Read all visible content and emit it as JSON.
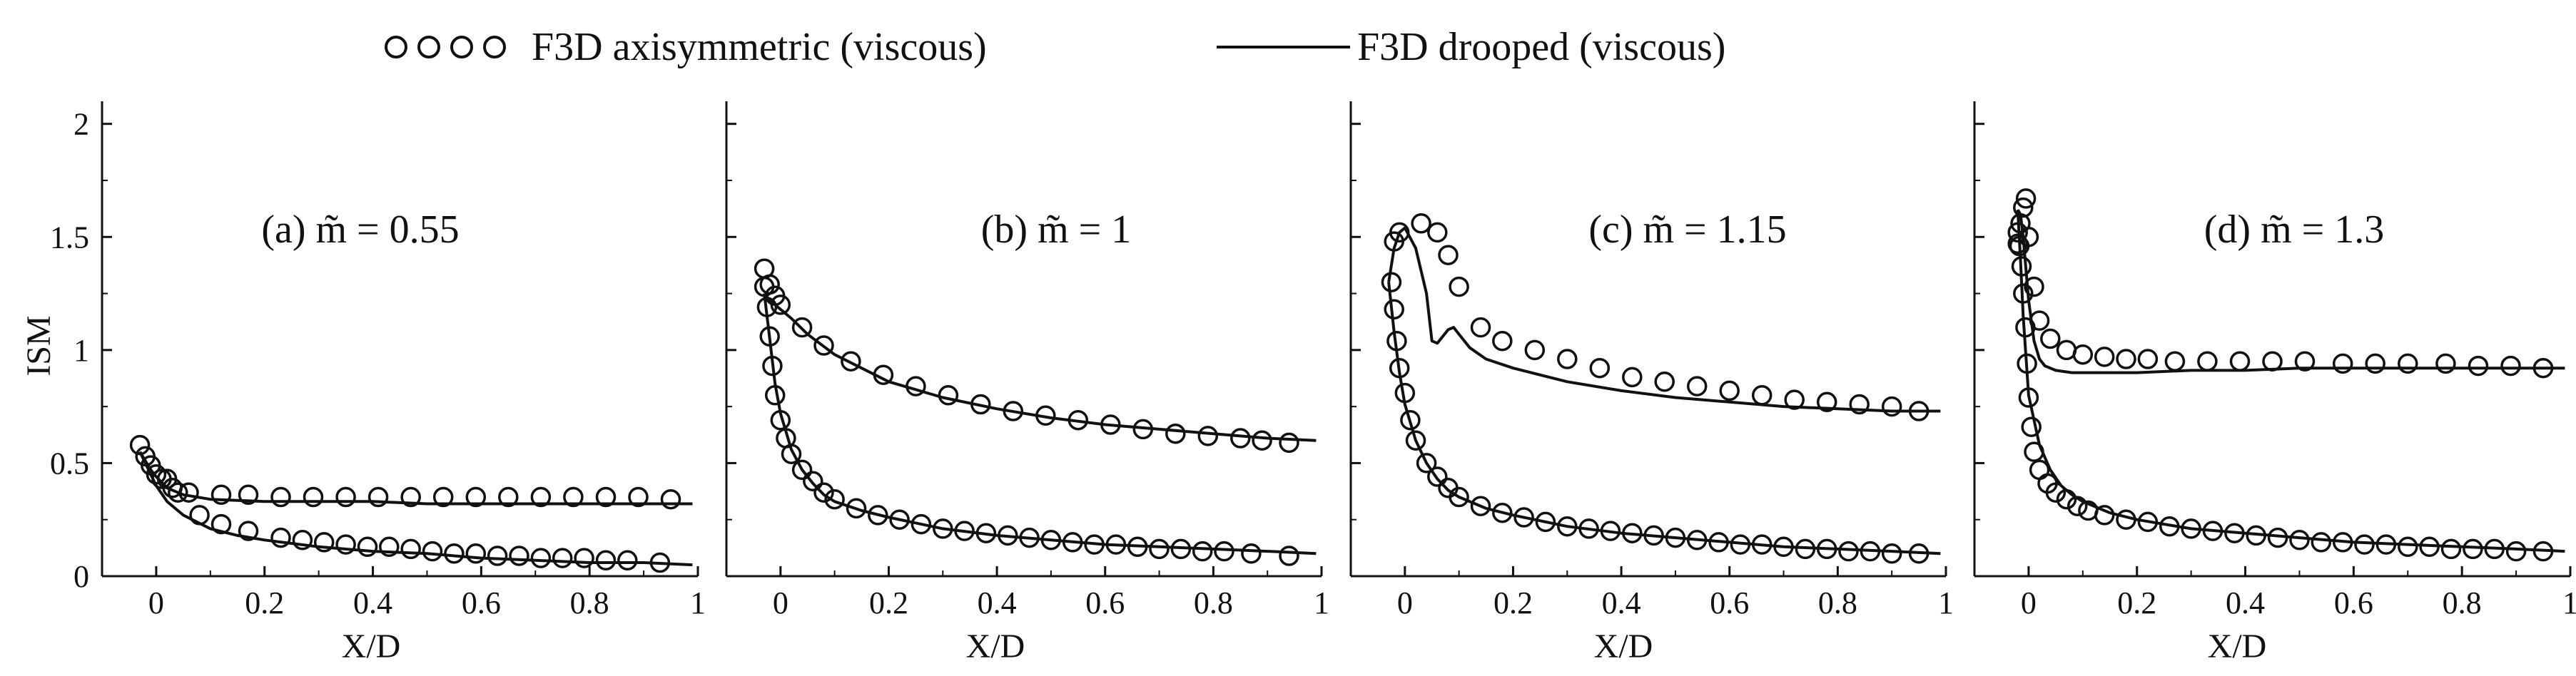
{
  "legend": {
    "axisymmetric_label": "F3D axisymmetric (viscous)",
    "drooped_label": "F3D drooped (viscous)",
    "placement": "top-center"
  },
  "colors": {
    "ink": "#111111",
    "background": "#ffffff"
  },
  "chart_data": [
    {
      "type": "line",
      "panel": "a",
      "title": "(a) m̃ = 0.55",
      "xlabel": "X/D",
      "ylabel": "ISM",
      "xlim": [
        -0.1,
        1.0
      ],
      "ylim": [
        0,
        2.1
      ],
      "xticks": [
        0,
        0.2,
        0.4,
        0.6,
        0.8,
        1
      ],
      "xticklabels": [
        "0",
        "0.2",
        "0.4",
        "0.6",
        "0.8",
        "1"
      ],
      "yticks": [
        0,
        0.5,
        1,
        1.5,
        2
      ],
      "yticklabels": [
        "0",
        "0.5",
        "1",
        "1.5",
        "2"
      ],
      "grid": false,
      "series": [
        {
          "name": "F3D axisymmetric (viscous) upper",
          "style": "marker-circle",
          "x": [
            -0.03,
            -0.02,
            -0.01,
            0.0,
            0.01,
            0.03,
            0.06,
            0.12,
            0.17,
            0.23,
            0.29,
            0.35,
            0.41,
            0.47,
            0.53,
            0.59,
            0.65,
            0.71,
            0.77,
            0.83,
            0.89,
            0.95
          ],
          "y": [
            0.58,
            0.53,
            0.49,
            0.45,
            0.43,
            0.39,
            0.37,
            0.36,
            0.36,
            0.35,
            0.35,
            0.35,
            0.35,
            0.35,
            0.35,
            0.35,
            0.35,
            0.35,
            0.35,
            0.35,
            0.35,
            0.34
          ]
        },
        {
          "name": "F3D axisymmetric (viscous) lower",
          "style": "marker-circle",
          "x": [
            0.02,
            0.04,
            0.08,
            0.12,
            0.17,
            0.23,
            0.27,
            0.31,
            0.35,
            0.39,
            0.43,
            0.47,
            0.51,
            0.55,
            0.59,
            0.63,
            0.67,
            0.71,
            0.75,
            0.79,
            0.83,
            0.87,
            0.93
          ],
          "y": [
            0.43,
            0.37,
            0.27,
            0.23,
            0.2,
            0.17,
            0.16,
            0.15,
            0.14,
            0.13,
            0.13,
            0.12,
            0.11,
            0.1,
            0.1,
            0.09,
            0.09,
            0.08,
            0.08,
            0.08,
            0.07,
            0.07,
            0.06
          ]
        },
        {
          "name": "F3D drooped (viscous) upper",
          "style": "line",
          "x": [
            -0.03,
            -0.01,
            0.0,
            0.02,
            0.05,
            0.1,
            0.2,
            0.3,
            0.4,
            0.5,
            0.6,
            0.7,
            0.8,
            0.9,
            0.99
          ],
          "y": [
            0.55,
            0.47,
            0.44,
            0.39,
            0.36,
            0.34,
            0.33,
            0.33,
            0.33,
            0.32,
            0.32,
            0.32,
            0.32,
            0.32,
            0.32
          ]
        },
        {
          "name": "F3D drooped (viscous) lower",
          "style": "line",
          "x": [
            -0.03,
            -0.01,
            0.0,
            0.02,
            0.05,
            0.1,
            0.15,
            0.2,
            0.3,
            0.4,
            0.5,
            0.6,
            0.7,
            0.8,
            0.9,
            0.99
          ],
          "y": [
            0.55,
            0.45,
            0.4,
            0.33,
            0.27,
            0.21,
            0.18,
            0.16,
            0.13,
            0.11,
            0.1,
            0.08,
            0.07,
            0.06,
            0.06,
            0.05
          ]
        }
      ]
    },
    {
      "type": "line",
      "panel": "b",
      "title": "(b) m̃ = 1",
      "xlabel": "X/D",
      "ylabel": "",
      "xlim": [
        -0.1,
        1.0
      ],
      "ylim": [
        0,
        2.1
      ],
      "xticks": [
        0,
        0.2,
        0.4,
        0.6,
        0.8,
        1
      ],
      "xticklabels": [
        "0",
        "0.2",
        "0.4",
        "0.6",
        "0.8",
        "1"
      ],
      "yticks": [
        0,
        0.5,
        1,
        1.5,
        2
      ],
      "yticklabels": [],
      "grid": false,
      "series": [
        {
          "name": "F3D axisymmetric (viscous) upper",
          "style": "marker-circle",
          "x": [
            -0.03,
            -0.02,
            -0.01,
            0.0,
            0.04,
            0.08,
            0.13,
            0.19,
            0.25,
            0.31,
            0.37,
            0.43,
            0.49,
            0.55,
            0.61,
            0.67,
            0.73,
            0.79,
            0.85,
            0.89,
            0.94
          ],
          "y": [
            1.36,
            1.29,
            1.24,
            1.2,
            1.1,
            1.02,
            0.95,
            0.89,
            0.84,
            0.8,
            0.76,
            0.73,
            0.71,
            0.69,
            0.67,
            0.65,
            0.63,
            0.62,
            0.61,
            0.6,
            0.59
          ]
        },
        {
          "name": "F3D axisymmetric (viscous) lower",
          "style": "marker-circle",
          "x": [
            -0.03,
            -0.025,
            -0.02,
            -0.015,
            -0.01,
            0.0,
            0.01,
            0.02,
            0.04,
            0.06,
            0.08,
            0.1,
            0.14,
            0.18,
            0.22,
            0.26,
            0.3,
            0.34,
            0.38,
            0.42,
            0.46,
            0.5,
            0.54,
            0.58,
            0.62,
            0.66,
            0.7,
            0.74,
            0.78,
            0.82,
            0.87,
            0.94
          ],
          "y": [
            1.28,
            1.19,
            1.06,
            0.93,
            0.8,
            0.69,
            0.61,
            0.54,
            0.47,
            0.42,
            0.37,
            0.34,
            0.3,
            0.27,
            0.25,
            0.23,
            0.21,
            0.2,
            0.19,
            0.18,
            0.17,
            0.16,
            0.15,
            0.14,
            0.14,
            0.13,
            0.12,
            0.12,
            0.11,
            0.11,
            0.1,
            0.09
          ]
        },
        {
          "name": "F3D drooped (viscous) upper",
          "style": "line",
          "x": [
            -0.03,
            -0.02,
            -0.01,
            0.0,
            0.02,
            0.05,
            0.1,
            0.2,
            0.3,
            0.4,
            0.5,
            0.6,
            0.7,
            0.8,
            0.9,
            0.99
          ],
          "y": [
            1.25,
            1.22,
            1.2,
            1.18,
            1.14,
            1.07,
            0.98,
            0.86,
            0.79,
            0.74,
            0.7,
            0.67,
            0.65,
            0.63,
            0.61,
            0.6
          ]
        },
        {
          "name": "F3D drooped (viscous) lower",
          "style": "line",
          "x": [
            -0.03,
            -0.02,
            -0.01,
            0.0,
            0.02,
            0.04,
            0.06,
            0.08,
            0.1,
            0.15,
            0.2,
            0.3,
            0.4,
            0.5,
            0.6,
            0.7,
            0.8,
            0.9,
            0.99
          ],
          "y": [
            1.25,
            1.05,
            0.85,
            0.72,
            0.56,
            0.47,
            0.41,
            0.36,
            0.33,
            0.29,
            0.26,
            0.21,
            0.18,
            0.16,
            0.14,
            0.13,
            0.12,
            0.11,
            0.1
          ]
        }
      ]
    },
    {
      "type": "line",
      "panel": "c",
      "title": "(c) m̃ = 1.15",
      "xlabel": "X/D",
      "ylabel": "",
      "xlim": [
        -0.1,
        1.0
      ],
      "ylim": [
        0,
        2.1
      ],
      "xticks": [
        0,
        0.2,
        0.4,
        0.6,
        0.8,
        1
      ],
      "xticklabels": [
        "0",
        "0.2",
        "0.4",
        "0.6",
        "0.8",
        "1"
      ],
      "yticks": [
        0,
        0.5,
        1,
        1.5,
        2
      ],
      "yticklabels": [],
      "grid": false,
      "series": [
        {
          "name": "F3D axisymmetric (viscous) upper",
          "style": "marker-circle",
          "x": [
            -0.02,
            -0.01,
            0.03,
            0.06,
            0.08,
            0.1,
            0.14,
            0.18,
            0.24,
            0.3,
            0.36,
            0.42,
            0.48,
            0.54,
            0.6,
            0.66,
            0.72,
            0.78,
            0.84,
            0.9,
            0.95
          ],
          "y": [
            1.48,
            1.52,
            1.56,
            1.52,
            1.42,
            1.28,
            1.1,
            1.04,
            1.0,
            0.96,
            0.92,
            0.88,
            0.86,
            0.84,
            0.82,
            0.8,
            0.78,
            0.77,
            0.76,
            0.75,
            0.73
          ]
        },
        {
          "name": "F3D axisymmetric (viscous) lower",
          "style": "marker-circle",
          "x": [
            -0.025,
            -0.02,
            -0.015,
            -0.01,
            0.0,
            0.01,
            0.02,
            0.04,
            0.06,
            0.08,
            0.1,
            0.14,
            0.18,
            0.22,
            0.26,
            0.3,
            0.34,
            0.38,
            0.42,
            0.46,
            0.5,
            0.54,
            0.58,
            0.62,
            0.66,
            0.7,
            0.74,
            0.78,
            0.82,
            0.86,
            0.9,
            0.95
          ],
          "y": [
            1.3,
            1.18,
            1.04,
            0.92,
            0.81,
            0.69,
            0.6,
            0.5,
            0.44,
            0.39,
            0.35,
            0.31,
            0.28,
            0.26,
            0.24,
            0.22,
            0.21,
            0.2,
            0.19,
            0.18,
            0.17,
            0.16,
            0.15,
            0.14,
            0.14,
            0.13,
            0.12,
            0.12,
            0.11,
            0.11,
            0.1,
            0.1
          ]
        },
        {
          "name": "F3D drooped (viscous) upper",
          "style": "line",
          "x": [
            -0.03,
            -0.02,
            -0.01,
            0.0,
            0.02,
            0.04,
            0.05,
            0.06,
            0.07,
            0.08,
            0.09,
            0.1,
            0.12,
            0.15,
            0.2,
            0.3,
            0.4,
            0.5,
            0.6,
            0.7,
            0.8,
            0.9,
            0.99
          ],
          "y": [
            1.3,
            1.45,
            1.52,
            1.54,
            1.45,
            1.25,
            1.04,
            1.03,
            1.06,
            1.09,
            1.1,
            1.07,
            1.01,
            0.96,
            0.92,
            0.86,
            0.82,
            0.79,
            0.77,
            0.75,
            0.74,
            0.73,
            0.73
          ]
        },
        {
          "name": "F3D drooped (viscous) lower",
          "style": "line",
          "x": [
            -0.03,
            -0.02,
            -0.01,
            0.0,
            0.02,
            0.04,
            0.06,
            0.08,
            0.1,
            0.15,
            0.2,
            0.3,
            0.4,
            0.5,
            0.6,
            0.7,
            0.8,
            0.9,
            0.99
          ],
          "y": [
            1.3,
            1.08,
            0.9,
            0.76,
            0.6,
            0.5,
            0.43,
            0.38,
            0.35,
            0.3,
            0.27,
            0.22,
            0.19,
            0.17,
            0.15,
            0.13,
            0.12,
            0.11,
            0.1
          ]
        }
      ]
    },
    {
      "type": "line",
      "panel": "d",
      "title": "(d) m̃ = 1.3",
      "xlabel": "X/D",
      "ylabel": "",
      "xlim": [
        -0.1,
        1.0
      ],
      "ylim": [
        0,
        2.1
      ],
      "xticks": [
        0,
        0.2,
        0.4,
        0.6,
        0.8,
        1
      ],
      "xticklabels": [
        "0",
        "0.2",
        "0.4",
        "0.6",
        "0.8",
        "1"
      ],
      "yticks": [
        0,
        0.5,
        1,
        1.5,
        2
      ],
      "yticklabels": [],
      "grid": false,
      "series": [
        {
          "name": "F3D axisymmetric (viscous) upper",
          "style": "marker-circle",
          "x": [
            -0.02,
            -0.015,
            -0.01,
            -0.005,
            0.0,
            0.01,
            0.02,
            0.04,
            0.07,
            0.1,
            0.14,
            0.18,
            0.22,
            0.27,
            0.33,
            0.39,
            0.45,
            0.51,
            0.58,
            0.64,
            0.7,
            0.77,
            0.83,
            0.89,
            0.95
          ],
          "y": [
            1.47,
            1.56,
            1.63,
            1.67,
            1.5,
            1.28,
            1.13,
            1.05,
            1.0,
            0.98,
            0.97,
            0.96,
            0.96,
            0.95,
            0.95,
            0.95,
            0.95,
            0.95,
            0.94,
            0.94,
            0.94,
            0.94,
            0.93,
            0.93,
            0.92
          ]
        },
        {
          "name": "F3D axisymmetric (viscous) lower",
          "style": "marker-circle",
          "x": [
            -0.02,
            -0.017,
            -0.013,
            -0.01,
            -0.006,
            -0.003,
            0.0,
            0.005,
            0.01,
            0.02,
            0.035,
            0.05,
            0.07,
            0.09,
            0.11,
            0.14,
            0.18,
            0.22,
            0.26,
            0.3,
            0.34,
            0.38,
            0.42,
            0.46,
            0.5,
            0.54,
            0.58,
            0.62,
            0.66,
            0.7,
            0.74,
            0.78,
            0.82,
            0.86,
            0.9,
            0.95
          ],
          "y": [
            1.52,
            1.46,
            1.37,
            1.25,
            1.1,
            0.94,
            0.79,
            0.66,
            0.55,
            0.47,
            0.41,
            0.37,
            0.34,
            0.31,
            0.29,
            0.27,
            0.25,
            0.24,
            0.22,
            0.21,
            0.2,
            0.19,
            0.18,
            0.17,
            0.16,
            0.15,
            0.15,
            0.14,
            0.14,
            0.13,
            0.13,
            0.12,
            0.12,
            0.12,
            0.11,
            0.11
          ]
        },
        {
          "name": "F3D drooped (viscous) upper",
          "style": "line",
          "x": [
            -0.02,
            -0.015,
            -0.01,
            0.0,
            0.01,
            0.02,
            0.03,
            0.05,
            0.08,
            0.1,
            0.2,
            0.3,
            0.4,
            0.5,
            0.6,
            0.7,
            0.8,
            0.9,
            0.99
          ],
          "y": [
            1.62,
            1.6,
            1.5,
            1.22,
            1.04,
            0.96,
            0.93,
            0.91,
            0.9,
            0.9,
            0.9,
            0.91,
            0.91,
            0.92,
            0.92,
            0.92,
            0.92,
            0.92,
            0.92
          ]
        },
        {
          "name": "F3D drooped (viscous) lower",
          "style": "line",
          "x": [
            -0.02,
            -0.015,
            -0.01,
            0.0,
            0.02,
            0.04,
            0.06,
            0.08,
            0.1,
            0.15,
            0.2,
            0.3,
            0.4,
            0.5,
            0.6,
            0.7,
            0.8,
            0.9,
            0.99
          ],
          "y": [
            1.62,
            1.4,
            1.15,
            0.8,
            0.58,
            0.47,
            0.4,
            0.36,
            0.33,
            0.28,
            0.25,
            0.21,
            0.19,
            0.17,
            0.15,
            0.14,
            0.13,
            0.12,
            0.11
          ]
        }
      ]
    }
  ]
}
